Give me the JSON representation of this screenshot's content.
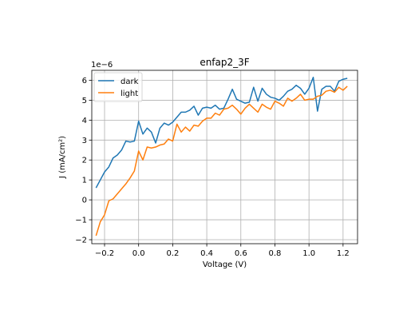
{
  "chart_data": {
    "type": "line",
    "title": "enfap2_3F",
    "xlabel": "Voltage (V)",
    "ylabel": "J (mA/cm²)",
    "y_offset_text": "1e−6",
    "y_scale": 1e-06,
    "xlim": [
      -0.275,
      1.285
    ],
    "ylim": [
      -2.2e-06,
      6.5e-06
    ],
    "x_ticks": [
      -0.2,
      0.0,
      0.2,
      0.4,
      0.6,
      0.8,
      1.0,
      1.2
    ],
    "x_tick_labels": [
      "−0.2",
      "0.0",
      "0.2",
      "0.4",
      "0.6",
      "0.8",
      "1.0",
      "1.2"
    ],
    "y_ticks": [
      -2e-06,
      -1e-06,
      0,
      1e-06,
      2e-06,
      3e-06,
      4e-06,
      5e-06,
      6e-06
    ],
    "y_tick_labels": [
      "−2",
      "−1",
      "0",
      "1",
      "2",
      "3",
      "4",
      "5",
      "6"
    ],
    "grid": true,
    "legend_position": "upper-left",
    "x": [
      -0.25,
      -0.225,
      -0.2,
      -0.175,
      -0.15,
      -0.125,
      -0.1,
      -0.075,
      -0.05,
      -0.025,
      0.0,
      0.025,
      0.05,
      0.075,
      0.1,
      0.125,
      0.15,
      0.175,
      0.2,
      0.225,
      0.25,
      0.275,
      0.3,
      0.325,
      0.35,
      0.375,
      0.4,
      0.425,
      0.45,
      0.475,
      0.5,
      0.525,
      0.55,
      0.575,
      0.6,
      0.625,
      0.65,
      0.675,
      0.7,
      0.725,
      0.75,
      0.775,
      0.8,
      0.825,
      0.85,
      0.875,
      0.9,
      0.925,
      0.95,
      0.975,
      1.0,
      1.025,
      1.05,
      1.075,
      1.1,
      1.125,
      1.15,
      1.175,
      1.2,
      1.225
    ],
    "series": [
      {
        "name": "dark",
        "color": "#1f77b4",
        "values": [
          6e-07,
          1e-06,
          1.4e-06,
          1.65e-06,
          2.1e-06,
          2.25e-06,
          2.5e-06,
          2.95e-06,
          2.9e-06,
          2.95e-06,
          3.95e-06,
          3.3e-06,
          3.6e-06,
          3.4e-06,
          2.85e-06,
          3.6e-06,
          3.85e-06,
          3.75e-06,
          3.9e-06,
          4.15e-06,
          4.4e-06,
          4.4e-06,
          4.5e-06,
          4.7e-06,
          4.25e-06,
          4.6e-06,
          4.65e-06,
          4.6e-06,
          4.75e-06,
          4.55e-06,
          4.6e-06,
          5.05e-06,
          5.55e-06,
          5.05e-06,
          4.95e-06,
          4.85e-06,
          4.9e-06,
          5.65e-06,
          4.95e-06,
          5.6e-06,
          5.3e-06,
          5.15e-06,
          5.1e-06,
          5e-06,
          5.2e-06,
          5.45e-06,
          5.55e-06,
          5.75e-06,
          5.6e-06,
          5.3e-06,
          5.6e-06,
          6.15e-06,
          4.45e-06,
          5.55e-06,
          5.7e-06,
          5.7e-06,
          5.45e-06,
          5.95e-06,
          6.05e-06,
          6.1e-06
        ]
      },
      {
        "name": "light",
        "color": "#ff7f0e",
        "values": [
          -1.8e-06,
          -1.1e-06,
          -7.5e-07,
          -5e-08,
          5e-08,
          3e-07,
          5.5e-07,
          8e-07,
          1.1e-06,
          1.45e-06,
          2.45e-06,
          2e-06,
          2.65e-06,
          2.6e-06,
          2.65e-06,
          2.75e-06,
          2.8e-06,
          3.05e-06,
          2.95e-06,
          3.8e-06,
          3.4e-06,
          3.65e-06,
          3.45e-06,
          3.75e-06,
          3.7e-06,
          3.95e-06,
          4.1e-06,
          4.1e-06,
          4.35e-06,
          4.25e-06,
          4.55e-06,
          4.6e-06,
          4.75e-06,
          4.55e-06,
          4.3e-06,
          4.6e-06,
          4.8e-06,
          4.6e-06,
          4.4e-06,
          4.8e-06,
          4.65e-06,
          4.55e-06,
          4.95e-06,
          4.85e-06,
          4.7e-06,
          5.1e-06,
          4.95e-06,
          5.1e-06,
          5.3e-06,
          5e-06,
          5.05e-06,
          5.05e-06,
          5.2e-06,
          5.25e-06,
          5.45e-06,
          5.5e-06,
          5.4e-06,
          5.65e-06,
          5.5e-06,
          5.7e-06
        ]
      }
    ]
  }
}
